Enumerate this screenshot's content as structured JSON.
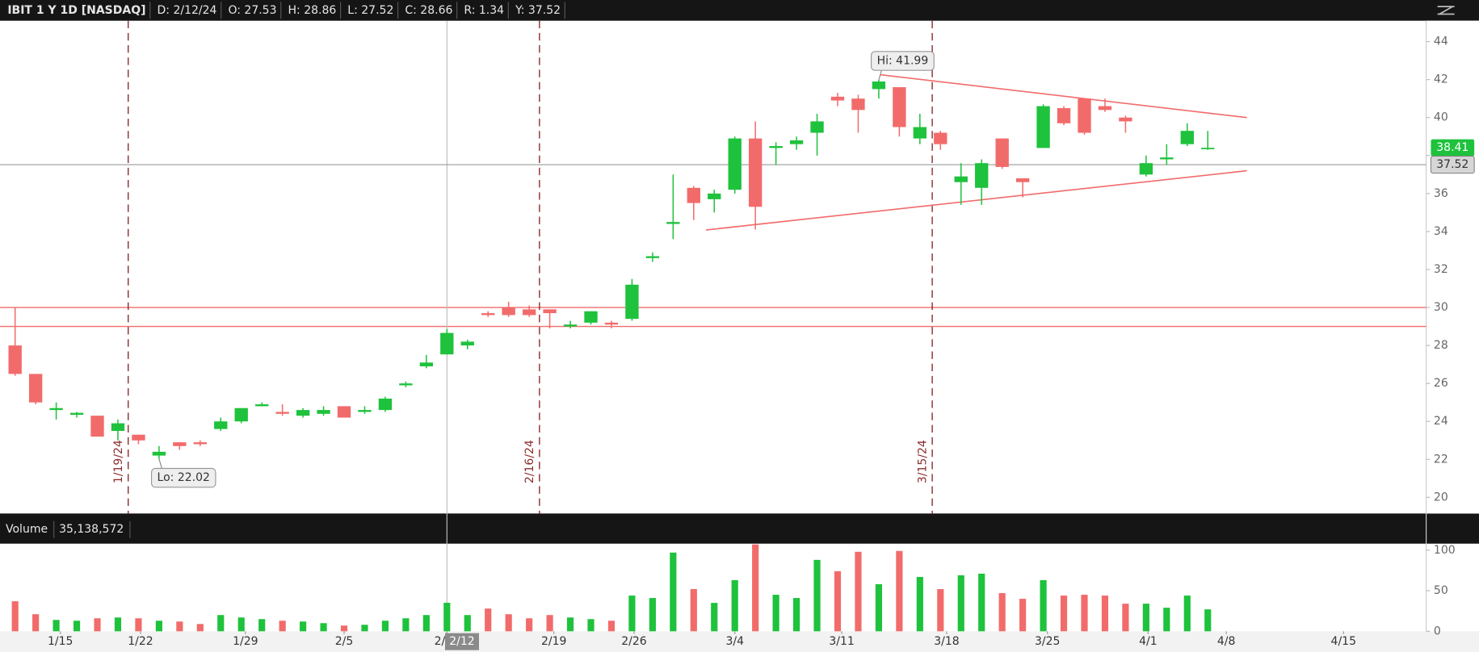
{
  "chart_data": {
    "type": "candlestick",
    "status_bar": [
      "IBIT 1 Y 1D [NASDAQ]",
      "D: 2/12/24",
      "O: 27.53",
      "H: 28.86",
      "L: 27.52",
      "C: 28.66",
      "R: 1.34",
      "Y: 37.52"
    ],
    "up_color": "#1ec23c",
    "down_color": "#f26b6b",
    "open": [
      28.0,
      26.5,
      24.6,
      24.35,
      24.3,
      23.5,
      23.3,
      22.2,
      22.9,
      22.9,
      23.6,
      24.0,
      24.8,
      24.5,
      24.3,
      24.4,
      24.8,
      24.5,
      24.6,
      25.9,
      26.9,
      27.53,
      28.0,
      29.7,
      30.0,
      29.9,
      29.9,
      29.0,
      29.2,
      29.2,
      29.4,
      32.6,
      34.4,
      36.3,
      35.7,
      36.2,
      38.9,
      38.4,
      38.6,
      39.2,
      41.1,
      41.0,
      41.5,
      41.6,
      38.9,
      39.2,
      36.6,
      36.3,
      38.9,
      36.8,
      38.4,
      40.5,
      41.0,
      40.6,
      40.0,
      37.0,
      37.8,
      38.6,
      38.35
    ],
    "high": [
      30.0,
      26.5,
      25.0,
      24.5,
      24.3,
      24.1,
      23.3,
      22.7,
      22.9,
      23.0,
      24.2,
      24.7,
      25.0,
      24.9,
      24.7,
      24.8,
      24.8,
      24.8,
      25.3,
      26.1,
      27.5,
      28.86,
      28.3,
      29.8,
      30.3,
      30.1,
      29.9,
      29.3,
      29.8,
      29.3,
      31.5,
      32.9,
      37.0,
      36.4,
      36.2,
      39.0,
      39.8,
      38.7,
      39.0,
      40.2,
      41.3,
      41.2,
      41.99,
      41.6,
      40.2,
      39.3,
      37.6,
      37.8,
      38.9,
      36.8,
      40.7,
      40.6,
      41.0,
      41.0,
      40.1,
      38.0,
      38.6,
      39.7,
      39.3
    ],
    "low": [
      26.4,
      24.9,
      24.1,
      24.2,
      23.2,
      23.0,
      22.8,
      22.02,
      22.5,
      22.7,
      23.5,
      23.9,
      24.8,
      24.3,
      24.2,
      24.3,
      24.2,
      24.4,
      24.5,
      25.8,
      26.8,
      27.52,
      27.8,
      29.5,
      29.5,
      29.5,
      28.9,
      28.9,
      29.1,
      28.9,
      29.3,
      32.4,
      33.6,
      34.6,
      35.0,
      36.0,
      34.1,
      37.5,
      38.3,
      38.0,
      40.6,
      39.2,
      41.0,
      39.0,
      38.6,
      38.3,
      35.4,
      35.4,
      37.3,
      35.8,
      38.4,
      39.6,
      39.1,
      40.3,
      39.2,
      36.9,
      37.5,
      38.5,
      38.3
    ],
    "close": [
      26.5,
      25.0,
      24.7,
      24.45,
      23.2,
      23.9,
      23.0,
      22.4,
      22.7,
      22.8,
      24.0,
      24.7,
      24.9,
      24.4,
      24.6,
      24.6,
      24.2,
      24.6,
      25.2,
      26.0,
      27.1,
      28.66,
      28.2,
      29.6,
      29.6,
      29.6,
      29.7,
      29.1,
      29.8,
      29.1,
      31.2,
      32.7,
      34.5,
      35.5,
      36.0,
      38.9,
      35.3,
      38.5,
      38.8,
      39.8,
      40.9,
      40.4,
      41.9,
      39.5,
      39.5,
      38.6,
      36.9,
      37.6,
      37.4,
      36.6,
      40.6,
      39.7,
      39.2,
      40.4,
      39.8,
      37.6,
      37.9,
      39.3,
      38.41
    ],
    "xlim": [
      -0.734,
      68.62
    ],
    "xticks": [
      {
        "value": 2.2,
        "label": "1/15"
      },
      {
        "value": 6.1,
        "label": "1/22"
      },
      {
        "value": 11.2,
        "label": "1/29"
      },
      {
        "value": 16.0,
        "label": "2/5"
      },
      {
        "value": 21.0,
        "label": "2/12"
      },
      {
        "value": 26.2,
        "label": "2/19"
      },
      {
        "value": 30.1,
        "label": "2/26"
      },
      {
        "value": 35.0,
        "label": "3/4"
      },
      {
        "value": 40.2,
        "label": "3/11"
      },
      {
        "value": 45.3,
        "label": "3/18"
      },
      {
        "value": 50.2,
        "label": "3/25"
      },
      {
        "value": 55.1,
        "label": "4/1"
      },
      {
        "value": 58.9,
        "label": "4/8"
      },
      {
        "value": 64.6,
        "label": "4/15"
      }
    ],
    "ylim": [
      19.15,
      45.1
    ],
    "yticks": [
      20,
      22,
      24,
      26,
      28,
      30,
      32,
      34,
      36,
      38,
      40,
      42,
      44
    ],
    "hlines": [
      {
        "value": 30,
        "color": "#f26b6b"
      },
      {
        "value": 29,
        "color": "#f26b6b"
      }
    ],
    "trendlines": [
      {
        "x": [
          42.06,
          59.9
        ],
        "y": [
          42.26,
          40.0
        ],
        "color": "#f26b6b"
      },
      {
        "x": [
          33.6,
          59.9
        ],
        "y": [
          34.08,
          37.2
        ],
        "color": "#f26b6b"
      }
    ],
    "events": [
      {
        "x": 5.5,
        "label": "1/19/24"
      },
      {
        "x": 25.5,
        "label": "2/16/24"
      },
      {
        "x": 44.6,
        "label": "3/15/24"
      }
    ],
    "hi": {
      "label": "Hi: 41.99",
      "x": 42,
      "value": 41.99
    },
    "lo": {
      "label": "Lo: 22.02",
      "x": 7,
      "value": 22.02
    },
    "crosshair": {
      "x": 21,
      "y": 37.52,
      "x_label": "2/12"
    },
    "last_price": 38.41,
    "volume": {
      "title": "Volume",
      "readout": "35,138,572",
      "values": [
        37,
        21,
        14,
        13,
        16,
        17,
        16,
        13,
        12,
        9,
        20,
        17,
        15,
        13,
        12,
        10,
        7,
        8,
        13,
        16,
        20,
        35.138572,
        20,
        28,
        21,
        16,
        20,
        17,
        15,
        13,
        44,
        41,
        97,
        52,
        35,
        63,
        107,
        45,
        41,
        88,
        74,
        98,
        58,
        99,
        67,
        52,
        69,
        71,
        47,
        40,
        63,
        44,
        45,
        44,
        34,
        34,
        29,
        44,
        27
      ],
      "ylim": [
        0,
        108
      ],
      "yticks": [
        0,
        50,
        100
      ]
    }
  }
}
